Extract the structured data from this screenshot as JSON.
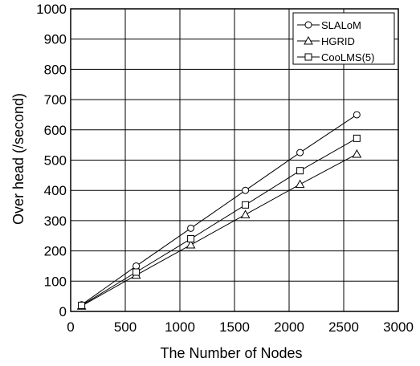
{
  "chart_data": {
    "type": "line",
    "title": "",
    "xlabel": "The Number of Nodes",
    "ylabel": "Over head (/second)",
    "xlim": [
      0,
      3000
    ],
    "ylim": [
      0,
      1000
    ],
    "xticks": [
      0,
      500,
      1000,
      1500,
      2000,
      2500,
      3000
    ],
    "yticks": [
      0,
      100,
      200,
      300,
      400,
      500,
      600,
      700,
      800,
      900,
      1000
    ],
    "grid": true,
    "legend_position": "top-right",
    "series": [
      {
        "name": "SLALoM",
        "marker": "circle",
        "color": "#000000",
        "x": [
          100,
          600,
          1100,
          1600,
          2100,
          2620
        ],
        "y": [
          22,
          150,
          275,
          400,
          525,
          650
        ]
      },
      {
        "name": "HGRID",
        "marker": "triangle",
        "color": "#000000",
        "x": [
          100,
          600,
          1100,
          1600,
          2100,
          2620
        ],
        "y": [
          18,
          120,
          220,
          320,
          420,
          520
        ]
      },
      {
        "name": "CooLMS(5)",
        "marker": "square",
        "color": "#000000",
        "x": [
          100,
          600,
          1100,
          1600,
          2100,
          2620
        ],
        "y": [
          20,
          130,
          240,
          352,
          465,
          572
        ]
      }
    ]
  }
}
